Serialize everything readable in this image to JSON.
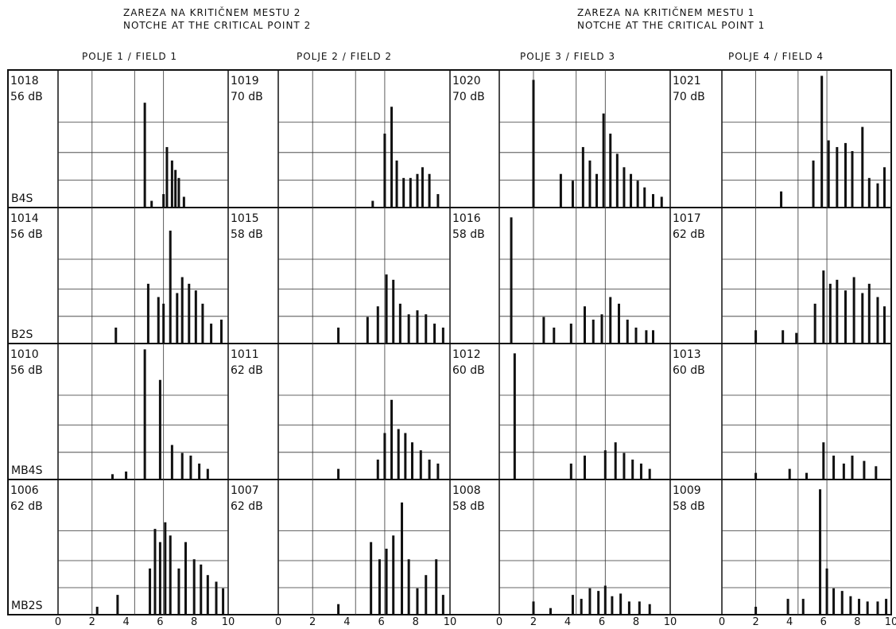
{
  "headers": {
    "notch2": [
      "ZAREZA NA KRITIČNEM MESTU 2",
      "NOTCHE AT THE CRITICAL POINT 2"
    ],
    "notch1": [
      "ZAREZA NA KRITIČNEM MESTU 1",
      "NOTCHE AT THE CRITICAL POINT 1"
    ]
  },
  "fields": [
    "POLJE 1 / FIELD 1",
    "POLJE 2 / FIELD 2",
    "POLJE 3 / FIELD 3",
    "POLJE 4 / FIELD 4"
  ],
  "row_labels": [
    "B4S",
    "B2S",
    "MB4S",
    "MB2S"
  ],
  "chart_data": {
    "type": "bar",
    "x_ticks": [
      "0",
      "2",
      "4",
      "6",
      "8",
      "10"
    ],
    "xlim": [
      0,
      10
    ],
    "panels": [
      {
        "row": 0,
        "col": 0,
        "id": "1018",
        "level": "56 dB"
      },
      {
        "row": 0,
        "col": 1,
        "id": "1019",
        "level": "70 dB"
      },
      {
        "row": 0,
        "col": 2,
        "id": "1020",
        "level": "70 dB"
      },
      {
        "row": 0,
        "col": 3,
        "id": "1021",
        "level": "70 dB"
      },
      {
        "row": 1,
        "col": 0,
        "id": "1014",
        "level": "56 dB"
      },
      {
        "row": 1,
        "col": 1,
        "id": "1015",
        "level": "58 dB"
      },
      {
        "row": 1,
        "col": 2,
        "id": "1016",
        "level": "58 dB"
      },
      {
        "row": 1,
        "col": 3,
        "id": "1017",
        "level": "62 dB"
      },
      {
        "row": 2,
        "col": 0,
        "id": "1010",
        "level": "56 dB"
      },
      {
        "row": 2,
        "col": 1,
        "id": "1011",
        "level": "62 dB"
      },
      {
        "row": 2,
        "col": 2,
        "id": "1012",
        "level": "60 dB"
      },
      {
        "row": 2,
        "col": 3,
        "id": "1013",
        "level": "60 dB"
      },
      {
        "row": 3,
        "col": 0,
        "id": "1006",
        "level": "62 dB"
      },
      {
        "row": 3,
        "col": 1,
        "id": "1007",
        "level": "62 dB"
      },
      {
        "row": 3,
        "col": 2,
        "id": "1008",
        "level": "58 dB"
      },
      {
        "row": 3,
        "col": 3,
        "id": "1009",
        "level": "58 dB"
      }
    ],
    "bars": [
      [
        [
          5.1,
          0.78
        ],
        [
          6.4,
          0.45
        ],
        [
          6.7,
          0.35
        ],
        [
          6.9,
          0.28
        ],
        [
          7.1,
          0.22
        ],
        [
          5.5,
          0.05
        ],
        [
          6.2,
          0.1
        ],
        [
          7.4,
          0.08
        ]
      ],
      [
        [
          6.2,
          0.55
        ],
        [
          6.6,
          0.75
        ],
        [
          6.9,
          0.35
        ],
        [
          7.3,
          0.22
        ],
        [
          7.7,
          0.22
        ],
        [
          8.1,
          0.25
        ],
        [
          8.4,
          0.3
        ],
        [
          8.8,
          0.25
        ],
        [
          9.3,
          0.1
        ],
        [
          5.5,
          0.05
        ]
      ],
      [
        [
          2.0,
          0.95
        ],
        [
          3.6,
          0.25
        ],
        [
          4.3,
          0.2
        ],
        [
          4.9,
          0.45
        ],
        [
          5.3,
          0.35
        ],
        [
          5.7,
          0.25
        ],
        [
          6.1,
          0.7
        ],
        [
          6.5,
          0.55
        ],
        [
          6.9,
          0.4
        ],
        [
          7.3,
          0.3
        ],
        [
          7.7,
          0.25
        ],
        [
          8.1,
          0.2
        ],
        [
          8.5,
          0.15
        ],
        [
          9.0,
          0.1
        ],
        [
          9.5,
          0.08
        ]
      ],
      [
        [
          3.5,
          0.12
        ],
        [
          5.4,
          0.35
        ],
        [
          5.9,
          0.98
        ],
        [
          6.3,
          0.5
        ],
        [
          6.8,
          0.45
        ],
        [
          7.3,
          0.48
        ],
        [
          7.7,
          0.42
        ],
        [
          8.3,
          0.6
        ],
        [
          8.7,
          0.22
        ],
        [
          9.2,
          0.18
        ],
        [
          9.6,
          0.3
        ]
      ],
      [
        [
          3.4,
          0.12
        ],
        [
          5.3,
          0.45
        ],
        [
          5.9,
          0.35
        ],
        [
          6.2,
          0.3
        ],
        [
          6.6,
          0.85
        ],
        [
          7.0,
          0.38
        ],
        [
          7.3,
          0.5
        ],
        [
          7.7,
          0.45
        ],
        [
          8.1,
          0.4
        ],
        [
          8.5,
          0.3
        ],
        [
          9.0,
          0.15
        ],
        [
          9.6,
          0.18
        ]
      ],
      [
        [
          3.5,
          0.12
        ],
        [
          5.2,
          0.2
        ],
        [
          5.8,
          0.28
        ],
        [
          6.3,
          0.52
        ],
        [
          6.7,
          0.48
        ],
        [
          7.1,
          0.3
        ],
        [
          7.6,
          0.22
        ],
        [
          8.1,
          0.25
        ],
        [
          8.6,
          0.22
        ],
        [
          9.1,
          0.15
        ],
        [
          9.6,
          0.12
        ]
      ],
      [
        [
          0.7,
          0.95
        ],
        [
          2.6,
          0.2
        ],
        [
          3.2,
          0.12
        ],
        [
          4.2,
          0.15
        ],
        [
          5.0,
          0.28
        ],
        [
          5.5,
          0.18
        ],
        [
          6.0,
          0.22
        ],
        [
          6.5,
          0.35
        ],
        [
          7.0,
          0.3
        ],
        [
          7.5,
          0.18
        ],
        [
          8.0,
          0.12
        ],
        [
          8.6,
          0.1
        ],
        [
          9.0,
          0.1
        ]
      ],
      [
        [
          2.0,
          0.1
        ],
        [
          3.6,
          0.1
        ],
        [
          4.4,
          0.08
        ],
        [
          5.5,
          0.3
        ],
        [
          6.0,
          0.55
        ],
        [
          6.4,
          0.45
        ],
        [
          6.8,
          0.48
        ],
        [
          7.3,
          0.4
        ],
        [
          7.8,
          0.5
        ],
        [
          8.3,
          0.38
        ],
        [
          8.7,
          0.45
        ],
        [
          9.2,
          0.35
        ],
        [
          9.6,
          0.28
        ]
      ],
      [
        [
          5.1,
          0.98
        ],
        [
          6.0,
          0.75
        ],
        [
          6.7,
          0.26
        ],
        [
          7.3,
          0.2
        ],
        [
          7.8,
          0.18
        ],
        [
          8.3,
          0.12
        ],
        [
          8.8,
          0.08
        ],
        [
          4.0,
          0.06
        ],
        [
          3.2,
          0.04
        ]
      ],
      [
        [
          3.5,
          0.08
        ],
        [
          5.8,
          0.15
        ],
        [
          6.2,
          0.35
        ],
        [
          6.6,
          0.6
        ],
        [
          7.0,
          0.38
        ],
        [
          7.4,
          0.35
        ],
        [
          7.8,
          0.28
        ],
        [
          8.3,
          0.22
        ],
        [
          8.8,
          0.15
        ],
        [
          9.3,
          0.12
        ]
      ],
      [
        [
          0.9,
          0.95
        ],
        [
          4.2,
          0.12
        ],
        [
          5.0,
          0.18
        ],
        [
          6.2,
          0.22
        ],
        [
          6.8,
          0.28
        ],
        [
          7.3,
          0.2
        ],
        [
          7.8,
          0.15
        ],
        [
          8.3,
          0.12
        ],
        [
          8.8,
          0.08
        ]
      ],
      [
        [
          2.0,
          0.05
        ],
        [
          4.0,
          0.08
        ],
        [
          5.0,
          0.05
        ],
        [
          6.0,
          0.28
        ],
        [
          6.6,
          0.18
        ],
        [
          7.2,
          0.12
        ],
        [
          7.7,
          0.18
        ],
        [
          8.4,
          0.14
        ],
        [
          9.1,
          0.1
        ]
      ],
      [
        [
          2.3,
          0.06
        ],
        [
          3.5,
          0.15
        ],
        [
          5.4,
          0.35
        ],
        [
          5.7,
          0.65
        ],
        [
          6.0,
          0.55
        ],
        [
          6.3,
          0.7
        ],
        [
          6.6,
          0.6
        ],
        [
          7.1,
          0.35
        ],
        [
          7.5,
          0.55
        ],
        [
          8.0,
          0.42
        ],
        [
          8.4,
          0.38
        ],
        [
          8.8,
          0.3
        ],
        [
          9.3,
          0.25
        ],
        [
          9.7,
          0.2
        ]
      ],
      [
        [
          3.5,
          0.08
        ],
        [
          5.4,
          0.55
        ],
        [
          5.9,
          0.42
        ],
        [
          6.3,
          0.5
        ],
        [
          6.7,
          0.6
        ],
        [
          7.2,
          0.85
        ],
        [
          7.6,
          0.42
        ],
        [
          8.1,
          0.2
        ],
        [
          8.6,
          0.3
        ],
        [
          9.2,
          0.42
        ],
        [
          9.6,
          0.15
        ]
      ],
      [
        [
          2.0,
          0.1
        ],
        [
          3.0,
          0.05
        ],
        [
          4.3,
          0.15
        ],
        [
          4.8,
          0.12
        ],
        [
          5.3,
          0.2
        ],
        [
          5.8,
          0.18
        ],
        [
          6.2,
          0.22
        ],
        [
          6.6,
          0.14
        ],
        [
          7.1,
          0.16
        ],
        [
          7.6,
          0.1
        ],
        [
          8.2,
          0.1
        ],
        [
          8.8,
          0.08
        ]
      ],
      [
        [
          2.0,
          0.06
        ],
        [
          3.9,
          0.12
        ],
        [
          4.8,
          0.12
        ],
        [
          5.8,
          0.95
        ],
        [
          6.2,
          0.35
        ],
        [
          6.6,
          0.2
        ],
        [
          7.1,
          0.18
        ],
        [
          7.6,
          0.14
        ],
        [
          8.1,
          0.12
        ],
        [
          8.6,
          0.1
        ],
        [
          9.2,
          0.1
        ],
        [
          9.7,
          0.12
        ]
      ]
    ]
  }
}
